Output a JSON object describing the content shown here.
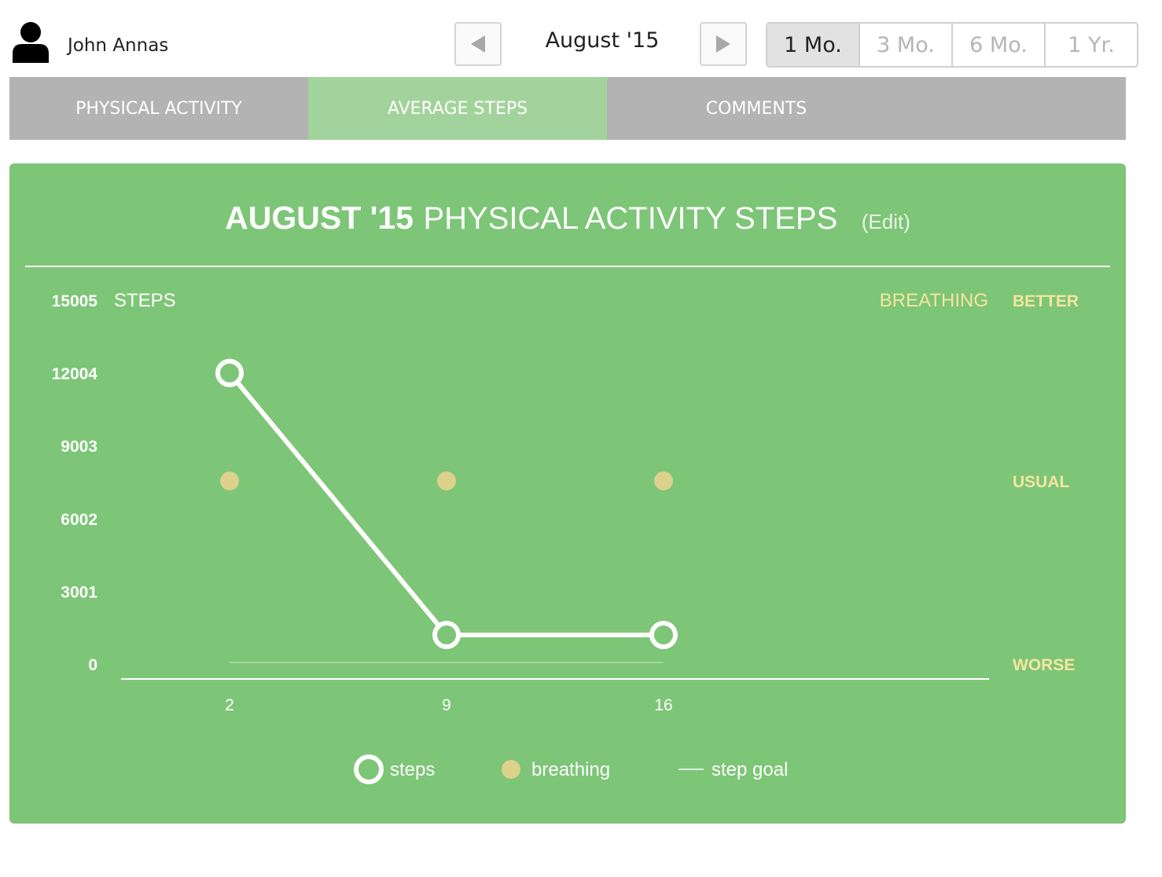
{
  "user": {
    "name": "John Annas"
  },
  "period": {
    "label": "August '15"
  },
  "ranges": [
    {
      "label": "1 Mo.",
      "active": true
    },
    {
      "label": "3 Mo.",
      "active": false
    },
    {
      "label": "6 Mo.",
      "active": false
    },
    {
      "label": "1 Yr.",
      "active": false
    }
  ],
  "tabs": [
    {
      "label": "PHYSICAL ACTIVITY",
      "active": false
    },
    {
      "label": "AVERAGE STEPS",
      "active": true
    },
    {
      "label": "COMMENTS",
      "active": false
    }
  ],
  "colors": {
    "panel": "#7dc577",
    "tab_bar": "#b3b3b3",
    "tab_active": "#a3d39c",
    "breathing": "#dcd28c",
    "breathing_text": "#f5e6a0",
    "line": "#ffffff"
  },
  "chart_data": {
    "type": "line",
    "title_bold": "AUGUST '15",
    "title_rest": "PHYSICAL ACTIVITY STEPS",
    "edit_label": "(Edit)",
    "y_axis_label": "STEPS",
    "y_ticks": [
      0,
      3001,
      6002,
      9003,
      12004,
      15005
    ],
    "ylim": [
      0,
      15005
    ],
    "x_categories": [
      "2",
      "9",
      "16"
    ],
    "right_axis_label": "BREATHING",
    "breathing_levels": [
      "WORSE",
      "USUAL",
      "BETTER"
    ],
    "series": [
      {
        "name": "steps",
        "values": [
          12004,
          1200,
          1200
        ]
      },
      {
        "name": "breathing",
        "values": [
          "USUAL",
          "USUAL",
          "USUAL"
        ]
      },
      {
        "name": "step goal",
        "values": [
          0,
          0,
          0
        ]
      }
    ],
    "legend": [
      "steps",
      "breathing",
      "step goal"
    ]
  }
}
